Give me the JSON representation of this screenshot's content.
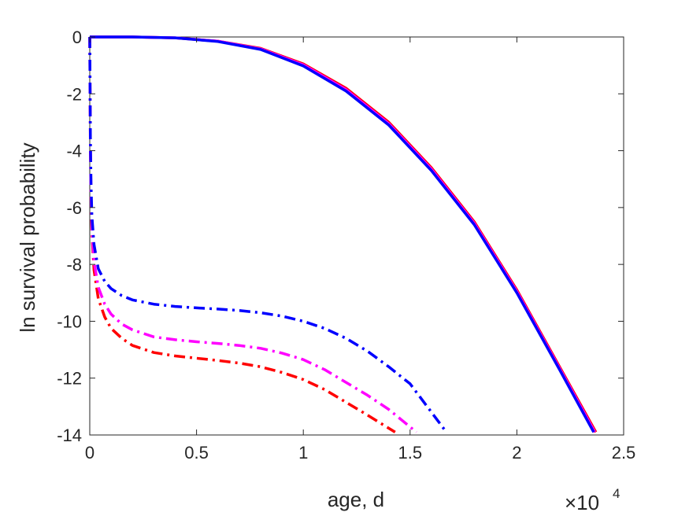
{
  "chart_data": {
    "type": "line",
    "xlabel": "age, d",
    "ylabel": "ln survival probability",
    "x_exponent_label": {
      "base": "×10",
      "power": "4"
    },
    "xlim": [
      0,
      25000
    ],
    "ylim": [
      -14,
      0
    ],
    "xticks": [
      0,
      5000,
      10000,
      15000,
      20000,
      25000
    ],
    "xtick_labels": [
      "0",
      "0.5",
      "1",
      "1.5",
      "2",
      "2.5"
    ],
    "yticks": [
      0,
      -2,
      -4,
      -6,
      -8,
      -10,
      -12,
      -14
    ],
    "ytick_labels": [
      "0",
      "-2",
      "-4",
      "-6",
      "-8",
      "-10",
      "-12",
      "-14"
    ],
    "grid": false,
    "box": true,
    "series": [
      {
        "color": "#ff0000",
        "dash": "solid",
        "x": [
          0,
          2000,
          4000,
          6000,
          8000,
          10000,
          12000,
          14000,
          16000,
          18000,
          20000,
          22000,
          23700
        ],
        "y": [
          0,
          0,
          -0.03,
          -0.15,
          -0.4,
          -0.95,
          -1.8,
          -3.0,
          -4.6,
          -6.5,
          -8.9,
          -11.6,
          -13.9
        ]
      },
      {
        "color": "#ff00ff",
        "dash": "solid",
        "x": [
          0,
          2000,
          4000,
          6000,
          8000,
          10000,
          12000,
          14000,
          16000,
          18000,
          20000,
          22000,
          23650
        ],
        "y": [
          0,
          0,
          -0.03,
          -0.15,
          -0.42,
          -0.98,
          -1.85,
          -3.05,
          -4.65,
          -6.55,
          -8.95,
          -11.65,
          -13.9
        ]
      },
      {
        "color": "#0000ff",
        "dash": "solid",
        "x": [
          0,
          2000,
          4000,
          6000,
          8000,
          10000,
          12000,
          14000,
          16000,
          18000,
          20000,
          22000,
          23600
        ],
        "y": [
          0,
          0,
          -0.03,
          -0.16,
          -0.44,
          -1.02,
          -1.9,
          -3.1,
          -4.7,
          -6.6,
          -9.0,
          -11.7,
          -13.9
        ]
      },
      {
        "color": "#ff0000",
        "dash": "dashdot",
        "x": [
          0,
          30,
          60,
          100,
          200,
          400,
          700,
          1000,
          1500,
          2000,
          3000,
          4000,
          5000,
          6000,
          7000,
          8000,
          9000,
          10000,
          11000,
          12000,
          13000,
          14300
        ],
        "y": [
          0,
          -4.0,
          -5.7,
          -6.9,
          -8.2,
          -9.2,
          -9.85,
          -10.25,
          -10.6,
          -10.85,
          -11.1,
          -11.22,
          -11.3,
          -11.38,
          -11.47,
          -11.6,
          -11.8,
          -12.05,
          -12.4,
          -12.85,
          -13.3,
          -13.9
        ]
      },
      {
        "color": "#ff00ff",
        "dash": "dashdot",
        "x": [
          0,
          30,
          60,
          100,
          200,
          400,
          700,
          1000,
          1500,
          2000,
          3000,
          4000,
          5000,
          6000,
          7000,
          8000,
          9000,
          10000,
          11000,
          12000,
          13000,
          14000,
          15300
        ],
        "y": [
          0,
          -3.8,
          -5.5,
          -6.7,
          -7.9,
          -8.8,
          -9.4,
          -9.75,
          -10.1,
          -10.3,
          -10.55,
          -10.65,
          -10.72,
          -10.78,
          -10.85,
          -10.95,
          -11.12,
          -11.35,
          -11.7,
          -12.15,
          -12.6,
          -13.1,
          -13.9
        ]
      },
      {
        "color": "#0000ff",
        "dash": "dashdot",
        "x": [
          0,
          30,
          60,
          100,
          200,
          400,
          700,
          1000,
          1500,
          2000,
          3000,
          4000,
          5000,
          6000,
          7000,
          8000,
          9000,
          10000,
          11000,
          12000,
          13000,
          14000,
          15000,
          16600
        ],
        "y": [
          0,
          -3.6,
          -5.2,
          -6.3,
          -7.3,
          -8.15,
          -8.6,
          -8.85,
          -9.1,
          -9.25,
          -9.4,
          -9.48,
          -9.53,
          -9.57,
          -9.62,
          -9.7,
          -9.82,
          -10.0,
          -10.25,
          -10.6,
          -11.05,
          -11.6,
          -12.2,
          -13.8
        ]
      }
    ]
  }
}
